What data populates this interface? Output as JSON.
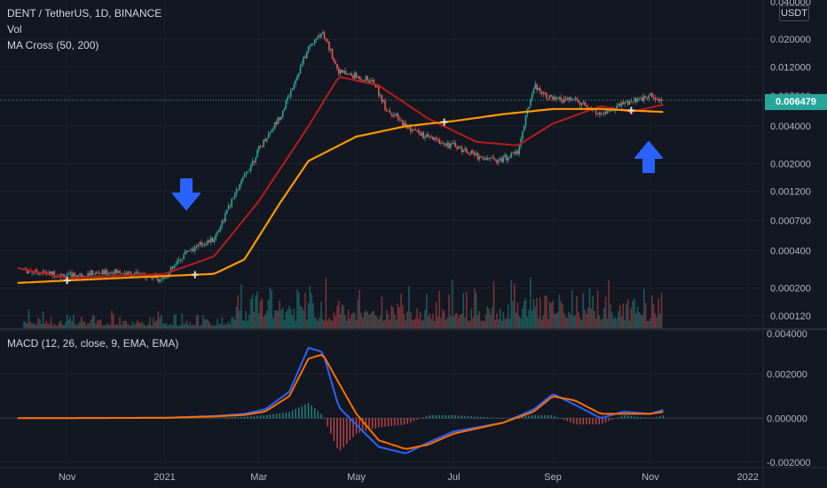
{
  "symbol_title": "DENT / TetherUS, 1D, BINANCE",
  "indicators": {
    "vol_label": "Vol",
    "ma_cross_label": "MA Cross (50, 200)",
    "macd_label": "MACD (12, 26, close, 9, EMA, EMA)"
  },
  "price_axis": {
    "currency": "USDT",
    "last_price": "0.006479",
    "top_partial_tick": "0.040000"
  },
  "colors": {
    "background": "#131722",
    "up_candle": "#26a69a",
    "down_candle": "#ef5350",
    "ma50": "#b71c1c",
    "ma200": "#ff9800",
    "macd_line": "#2962ff",
    "signal_line": "#ff6d00",
    "arrow": "#2962ff"
  },
  "icons": {
    "down_arrow": "arrow-down-icon",
    "up_arrow": "arrow-up-icon"
  },
  "chart_data": [
    {
      "type": "line",
      "title": "DENT / TetherUS, 1D, BINANCE",
      "scale": "log",
      "ylim": [
        0.0001,
        0.04
      ],
      "y_ticks": [
        "0.020000",
        "0.012000",
        "0.007000",
        "0.004000",
        "0.002000",
        "0.001200",
        "0.000700",
        "0.000400",
        "0.000200",
        "0.000120"
      ],
      "x_ticks": [
        "Nov",
        "2021",
        "Mar",
        "May",
        "Jul",
        "Sep",
        "Nov",
        "2022"
      ],
      "series": [
        {
          "name": "Price",
          "x": [
            "2020-10-05",
            "2020-11-01",
            "2020-12-01",
            "2021-01-01",
            "2021-01-15",
            "2021-02-01",
            "2021-02-15",
            "2021-03-01",
            "2021-03-15",
            "2021-04-01",
            "2021-04-10",
            "2021-04-20",
            "2021-05-01",
            "2021-05-12",
            "2021-05-20",
            "2021-06-01",
            "2021-06-15",
            "2021-07-01",
            "2021-07-20",
            "2021-08-01",
            "2021-08-10",
            "2021-08-20",
            "2021-09-01",
            "2021-09-15",
            "2021-10-01",
            "2021-10-15",
            "2021-11-01",
            "2021-11-08"
          ],
          "y": [
            0.00028,
            0.00025,
            0.00027,
            0.00024,
            0.0004,
            0.0005,
            0.0012,
            0.0026,
            0.005,
            0.017,
            0.023,
            0.011,
            0.01,
            0.009,
            0.0055,
            0.004,
            0.0032,
            0.0028,
            0.0022,
            0.0022,
            0.0025,
            0.0085,
            0.0065,
            0.0065,
            0.0049,
            0.006,
            0.007,
            0.0065
          ]
        },
        {
          "name": "MA 50",
          "x": [
            "2020-10-01",
            "2020-11-01",
            "2020-12-01",
            "2021-01-01",
            "2021-02-01",
            "2021-03-01",
            "2021-04-01",
            "2021-04-20",
            "2021-05-15",
            "2021-06-15",
            "2021-07-15",
            "2021-08-10",
            "2021-09-01",
            "2021-10-01",
            "2021-10-20",
            "2021-11-10"
          ],
          "y": [
            0.00029,
            0.00024,
            0.00025,
            0.00026,
            0.00036,
            0.001,
            0.004,
            0.01,
            0.0085,
            0.0046,
            0.003,
            0.0028,
            0.0042,
            0.0058,
            0.0052,
            0.006
          ]
        },
        {
          "name": "MA 200",
          "x": [
            "2020-10-01",
            "2020-11-01",
            "2020-12-01",
            "2021-01-01",
            "2021-02-01",
            "2021-02-20",
            "2021-03-15",
            "2021-04-01",
            "2021-05-01",
            "2021-06-01",
            "2021-07-01",
            "2021-08-01",
            "2021-09-01",
            "2021-10-01",
            "2021-11-10"
          ],
          "y": [
            0.00022,
            0.00023,
            0.00024,
            0.00025,
            0.00026,
            0.00034,
            0.001,
            0.0021,
            0.0033,
            0.004,
            0.0044,
            0.005,
            0.0055,
            0.0055,
            0.0052
          ]
        }
      ]
    },
    {
      "type": "bar",
      "title": "Vol",
      "note": "volume histogram overlaid at the bottom of the price pane"
    },
    {
      "type": "line",
      "title": "MACD (12, 26, close, 9, EMA, EMA)",
      "ylim": [
        -0.0022,
        0.004
      ],
      "y_ticks": [
        "0.004000",
        "0.002000",
        "0.000000",
        "-0.002000"
      ],
      "series": [
        {
          "name": "MACD",
          "x": [
            "2020-10-01",
            "2021-01-01",
            "2021-02-01",
            "2021-02-20",
            "2021-03-05",
            "2021-03-20",
            "2021-04-01",
            "2021-04-10",
            "2021-04-20",
            "2021-05-01",
            "2021-05-15",
            "2021-06-01",
            "2021-06-15",
            "2021-07-01",
            "2021-08-01",
            "2021-08-20",
            "2021-09-01",
            "2021-09-15",
            "2021-10-01",
            "2021-10-15",
            "2021-11-01",
            "2021-11-10"
          ],
          "y": [
            0.0,
            2e-05,
            0.0001,
            0.0002,
            0.0004,
            0.0012,
            0.0032,
            0.003,
            0.0005,
            -0.0003,
            -0.0013,
            -0.0016,
            -0.0011,
            -0.0006,
            -0.0002,
            0.0004,
            0.0011,
            0.0006,
            0.0,
            0.0003,
            0.0002,
            0.0004
          ]
        },
        {
          "name": "Signal",
          "x": [
            "2020-10-01",
            "2021-01-01",
            "2021-02-01",
            "2021-02-20",
            "2021-03-05",
            "2021-03-20",
            "2021-04-01",
            "2021-04-10",
            "2021-04-20",
            "2021-05-01",
            "2021-05-15",
            "2021-06-01",
            "2021-06-15",
            "2021-07-01",
            "2021-08-01",
            "2021-08-20",
            "2021-09-01",
            "2021-09-15",
            "2021-10-01",
            "2021-10-15",
            "2021-11-01",
            "2021-11-10"
          ],
          "y": [
            0.0,
            2e-05,
            8e-05,
            0.00015,
            0.0003,
            0.001,
            0.0027,
            0.0029,
            0.0016,
            0.0002,
            -0.001,
            -0.0014,
            -0.0012,
            -0.0007,
            -0.0002,
            0.0003,
            0.001,
            0.0008,
            0.0002,
            0.0002,
            0.0002,
            0.0003
          ]
        }
      ]
    }
  ]
}
